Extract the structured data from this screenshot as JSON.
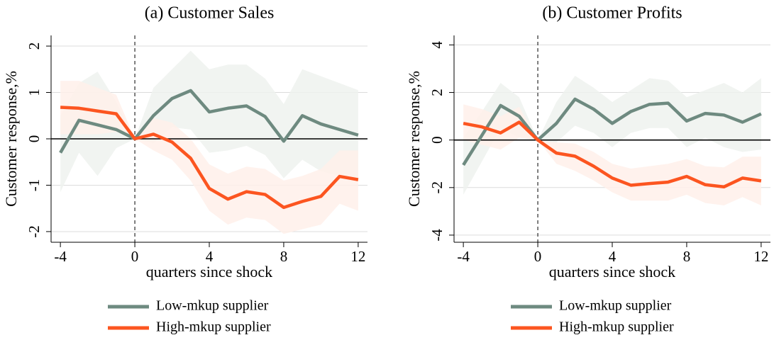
{
  "chart_data": [
    {
      "type": "line",
      "title": "(a) Customer Sales",
      "x_label": "quarters since shock",
      "y_label": "Customer response,%",
      "x": [
        -4,
        -3,
        -2,
        -1,
        0,
        1,
        2,
        3,
        4,
        5,
        6,
        7,
        8,
        9,
        10,
        11,
        12
      ],
      "xlim": [
        -4.5,
        12.5
      ],
      "xticks": [
        -4,
        0,
        4,
        8,
        12
      ],
      "ylim": [
        -2.23,
        2.23
      ],
      "yticks": [
        -2,
        -1,
        0,
        1,
        2
      ],
      "grid": true,
      "series": [
        {
          "name": "Low-mkup supplier",
          "color": "#6e8a80",
          "band_color": "#eef2ef",
          "values": [
            -0.3,
            0.4,
            0.3,
            0.2,
            0,
            0.5,
            0.87,
            1.04,
            0.58,
            0.66,
            0.71,
            0.48,
            -0.05,
            0.5,
            0.32,
            0.2,
            0.08
          ],
          "upper": [
            0.5,
            1.2,
            1.45,
            0.8,
            0,
            1.1,
            1.5,
            1.9,
            1.5,
            1.6,
            1.6,
            1.3,
            0.75,
            1.5,
            1.35,
            1.2,
            1.05
          ],
          "lower": [
            -1.15,
            -0.3,
            -0.8,
            -0.2,
            0,
            -0.1,
            0.25,
            0.2,
            -0.3,
            -0.25,
            -0.15,
            -0.35,
            -0.85,
            -0.45,
            -0.7,
            -0.8,
            -0.9
          ]
        },
        {
          "name": "High-mkup supplier",
          "color": "#fc5520",
          "band_color": "#fff0ea",
          "values": [
            0.68,
            0.66,
            0.6,
            0.54,
            0,
            0.1,
            -0.07,
            -0.42,
            -1.07,
            -1.3,
            -1.14,
            -1.2,
            -1.48,
            -1.35,
            -1.24,
            -0.81,
            -0.88
          ],
          "upper": [
            1.25,
            1.25,
            1.1,
            0.95,
            0,
            0.45,
            0.35,
            0.0,
            -0.55,
            -0.75,
            -0.6,
            -0.65,
            -0.9,
            -0.8,
            -0.65,
            -0.25,
            -0.25
          ],
          "lower": [
            0.1,
            0.1,
            0.1,
            0.15,
            0,
            -0.25,
            -0.45,
            -0.9,
            -1.55,
            -1.85,
            -1.7,
            -1.75,
            -2.05,
            -1.95,
            -1.85,
            -1.4,
            -1.55
          ]
        }
      ]
    },
    {
      "type": "line",
      "title": "(b) Customer Profits",
      "x_label": "quarters since shock",
      "y_label": "Customer response,%",
      "x": [
        -4,
        -3,
        -2,
        -1,
        0,
        1,
        2,
        3,
        4,
        5,
        6,
        7,
        8,
        9,
        10,
        11,
        12
      ],
      "xlim": [
        -4.5,
        12.5
      ],
      "xticks": [
        -4,
        0,
        4,
        8,
        12
      ],
      "ylim": [
        -4.3,
        4.4
      ],
      "yticks": [
        -4,
        -2,
        0,
        2,
        4
      ],
      "grid": true,
      "series": [
        {
          "name": "Low-mkup supplier",
          "color": "#6e8a80",
          "band_color": "#eef2ef",
          "values": [
            -1.05,
            0.2,
            1.45,
            1.0,
            0,
            0.7,
            1.72,
            1.3,
            0.7,
            1.2,
            1.5,
            1.55,
            0.8,
            1.12,
            1.05,
            0.75,
            1.1
          ],
          "upper": [
            0.1,
            1.2,
            2.4,
            1.8,
            0,
            1.6,
            2.7,
            2.2,
            1.6,
            2.1,
            2.6,
            2.5,
            1.8,
            2.1,
            2.4,
            2.0,
            2.6
          ],
          "lower": [
            -2.3,
            -0.9,
            0.5,
            0.1,
            0,
            -0.1,
            0.6,
            0.3,
            -0.3,
            0.3,
            0.5,
            0.5,
            -0.3,
            0.1,
            -0.3,
            -0.5,
            -0.4
          ]
        },
        {
          "name": "High-mkup supplier",
          "color": "#fc5520",
          "band_color": "#fff0ea",
          "values": [
            0.7,
            0.55,
            0.3,
            0.75,
            0,
            -0.55,
            -0.68,
            -1.1,
            -1.6,
            -1.9,
            -1.83,
            -1.77,
            -1.53,
            -1.88,
            -1.97,
            -1.6,
            -1.72
          ],
          "upper": [
            1.5,
            1.3,
            1.0,
            1.4,
            0,
            -0.1,
            -0.15,
            -0.5,
            -1.0,
            -1.2,
            -1.1,
            -1.0,
            -0.8,
            -1.1,
            -1.15,
            -0.7,
            -0.7
          ],
          "lower": [
            0.0,
            -0.2,
            -0.4,
            0.1,
            0,
            -1.0,
            -1.3,
            -1.7,
            -2.2,
            -2.55,
            -2.55,
            -2.55,
            -2.3,
            -2.65,
            -2.75,
            -2.4,
            -2.75
          ]
        }
      ]
    }
  ]
}
